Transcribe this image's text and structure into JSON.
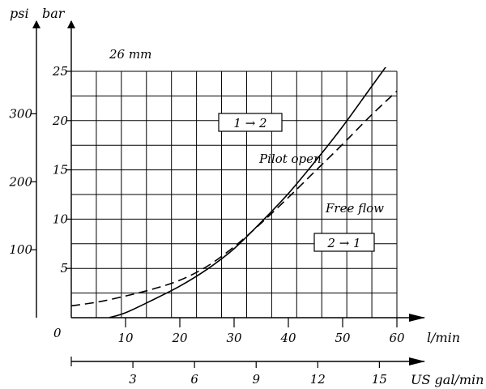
{
  "chart_data": {
    "type": "line",
    "title": "26 mm",
    "x": {
      "label": "l/min",
      "range": [
        0,
        60
      ],
      "ticks": [
        10,
        20,
        30,
        40,
        50,
        60
      ],
      "origin_label": "0"
    },
    "x2": {
      "label": "US gal/min",
      "range": [
        0,
        16
      ],
      "ticks": [
        3,
        6,
        9,
        12,
        15
      ]
    },
    "y": {
      "label": "bar",
      "range": [
        0,
        25
      ],
      "ticks": [
        5,
        10,
        15,
        20,
        25
      ]
    },
    "y2": {
      "label": "psi",
      "range": [
        0,
        375
      ],
      "ticks": [
        100,
        200,
        300
      ]
    },
    "grid": true,
    "series": [
      {
        "name": "Pilot open",
        "style": "solid",
        "x": [
          7,
          10,
          15,
          20,
          25,
          30,
          35,
          40,
          45,
          50,
          55,
          60
        ],
        "y": [
          0,
          0.5,
          1.8,
          3.2,
          4.9,
          7.0,
          9.7,
          12.6,
          15.9,
          19.4,
          23.2,
          27.0
        ]
      },
      {
        "name": "Free flow",
        "style": "dashed",
        "x": [
          0,
          5,
          10,
          15,
          20,
          25,
          30,
          35,
          40,
          45,
          50,
          55,
          60
        ],
        "y": [
          1.2,
          1.6,
          2.2,
          2.9,
          3.8,
          5.2,
          7.2,
          9.6,
          12.2,
          14.9,
          17.6,
          20.4,
          23.0
        ]
      }
    ],
    "annotations": {
      "forward": "1 → 2",
      "reverse": "2 → 1",
      "pilot_open": "Pilot open",
      "free_flow": "Free flow"
    }
  }
}
